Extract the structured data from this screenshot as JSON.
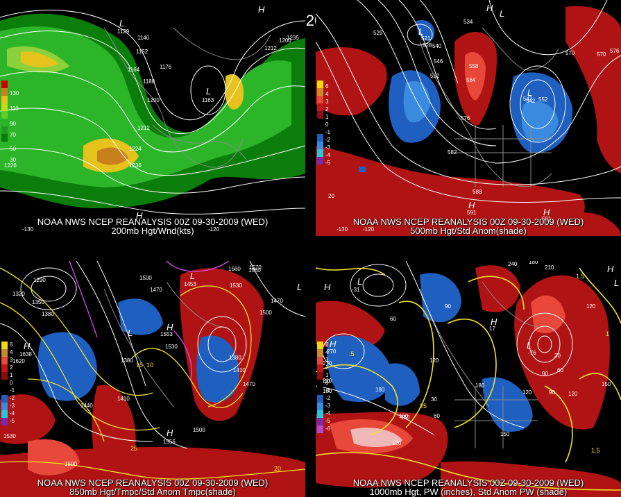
{
  "main_title": "00Z 09-30-2009 (WED)",
  "panels": [
    {
      "caption_line1": "NOAA NWS NCEP REANALYSIS 00Z 09-30-2009 (WED)",
      "caption_line2": "200mb Hgt/Wnd(kts)",
      "legend": [
        "130",
        "110",
        "90",
        "70",
        "50",
        "30"
      ],
      "legend_colors": [
        "#cc0000",
        "#c87f1e",
        "#e6c21c",
        "#c6d91c",
        "#5fcf2a",
        "#2db52a",
        "#1f9a1f",
        "#0b7d0b"
      ],
      "contour_labels": [
        "1140",
        "1152",
        "1164",
        "1176",
        "1188",
        "1200",
        "1212",
        "1224",
        "1236",
        "1212",
        "1200"
      ],
      "extrema": [
        "L",
        "L",
        "H",
        "H"
      ],
      "small_values": [
        "1129",
        "1163",
        "1226",
        "1235"
      ],
      "edge_values": [
        "-130",
        "-120"
      ]
    },
    {
      "caption_line1": "NOAA NWS NCEP REANALYSIS 00Z 09-30-2009 (WED)",
      "caption_line2": "500mb Hgt/Std Anom(shade)",
      "legend": [
        "6",
        "4",
        "3",
        "2",
        "1",
        "0",
        "-1",
        "-2",
        "-3",
        "-4",
        "-5"
      ],
      "legend_colors": [
        "#f1d90e",
        "#c88a2a",
        "#e8483a",
        "#c01818",
        "#8b0e0e",
        "#000000",
        "#000000",
        "#1f5fbf",
        "#3a8ae0",
        "#25c8d8",
        "#7a2aa8"
      ],
      "contour_labels": [
        "528",
        "534",
        "540",
        "546",
        "552",
        "558",
        "564",
        "576",
        "570",
        "582",
        "588",
        "542",
        "552",
        "570",
        "576",
        "529"
      ],
      "extrema": [
        "L",
        "L",
        "H",
        "H",
        "H",
        "L"
      ],
      "small_values": [
        "521",
        "542",
        "591",
        "591"
      ],
      "edge_values": [
        "-130",
        "-120",
        "20"
      ]
    },
    {
      "caption_line1": "NOAA NWS NCEP REANALYSIS 00Z 09-30-2009 (WED)",
      "caption_line2": "850mb Hgt/Tmpc/Std Anom Tmpc(shade)",
      "legend": [
        "6",
        "4",
        "3",
        "2",
        "1",
        "0",
        "-1",
        "-2",
        "-3",
        "-4",
        "-5"
      ],
      "legend_colors": [
        "#f1d90e",
        "#c88a2a",
        "#e8483a",
        "#c01818",
        "#8b0e0e",
        "#000000",
        "#000000",
        "#1f5fbf",
        "#3a8ae0",
        "#25c8d8",
        "#7a2aa8"
      ],
      "contour_labels": [
        "1500",
        "1470",
        "1560",
        "1530",
        "1290",
        "1320",
        "1350",
        "1380",
        "1620",
        "1380",
        "1410",
        "1440",
        "1530",
        "1560",
        "1470",
        "1500",
        "1380",
        "1410",
        "1500",
        "1530",
        "1470",
        "1500"
      ],
      "temp_labels": [
        "15",
        "10",
        "25",
        "20"
      ],
      "extrema": [
        "H",
        "H",
        "L",
        "H",
        "L",
        "L"
      ],
      "small_values": [
        "1453",
        "1553",
        "1638",
        "1556",
        "1570"
      ],
      "edge_values": []
    },
    {
      "caption_line1": "NOAA NWS NCEP REANALYSIS 00Z 09-30-2009 (WED)",
      "caption_line2": "1000mb Hgt, PW (inches), Std Anom PW (shade)",
      "legend": [
        "6",
        "4",
        "3",
        "2",
        "1",
        "0",
        "-1",
        "-2",
        "-3",
        "-4",
        "-5",
        "-6"
      ],
      "legend_colors": [
        "#f1d90e",
        "#c88a2a",
        "#e8483a",
        "#c01818",
        "#8b0e0e",
        "#000000",
        "#000000",
        "#1f5fbf",
        "#3a8ae0",
        "#25c8d8",
        "#7a2aa8",
        "#b04ad0"
      ],
      "contour_labels": [
        "240",
        "180",
        "210",
        "90",
        "120",
        "60",
        "180",
        "270",
        "210",
        "150",
        "180",
        "120",
        "30",
        "60",
        "120",
        "90",
        "120",
        "150",
        "30",
        "60",
        "90",
        "150",
        "180",
        "150",
        "210",
        "120"
      ],
      "pw_labels": [
        "1.5",
        "1",
        ".5",
        "25",
        "1.5"
      ],
      "extrema": [
        "H",
        "L",
        "H",
        "L",
        "H",
        "L",
        "H"
      ],
      "small_values": [
        "-31",
        "270",
        "17",
        "-76"
      ],
      "edge_values": []
    }
  ],
  "colors": {
    "background": "#000000",
    "jet_green_dark": "#0b7d0b",
    "jet_green": "#2db52a",
    "jet_yellow": "#e6c21c",
    "anom_red": "#b01313",
    "anom_blue": "#2a6fd0",
    "contour_white": "#ffffff",
    "contour_yellow": "#f3e326",
    "contour_magenta": "#d94cf0",
    "coast_gray": "#8a8a8a"
  }
}
